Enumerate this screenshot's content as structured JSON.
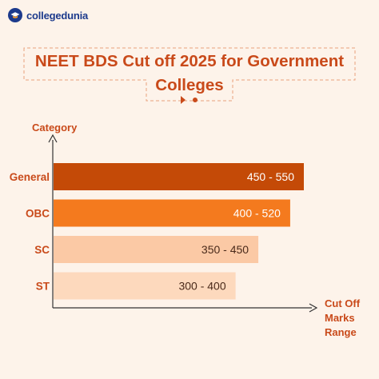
{
  "brand": {
    "name": "collegedunia",
    "logo_icon": "graduation-cap-icon",
    "color": "#1c3a8c"
  },
  "title": {
    "line1": "NEET BDS Cut off 2025 for Government",
    "line2": "Colleges"
  },
  "colors": {
    "background": "#fdf3ea",
    "title": "#c94a1a",
    "axis": "#333333"
  },
  "chart_data": {
    "type": "bar",
    "orientation": "horizontal",
    "ylabel": "Category",
    "xlabel_lines": [
      "Cut Off",
      "Marks",
      "Range"
    ],
    "categories": [
      "General",
      "OBC",
      "SC",
      "ST"
    ],
    "series": [
      {
        "values": [
          [
            450,
            550
          ],
          [
            400,
            520
          ],
          [
            350,
            450
          ],
          [
            300,
            400
          ]
        ],
        "labels": [
          "450 - 550",
          "400 - 520",
          "350 - 450",
          "300 - 400"
        ],
        "colors": [
          "#c44a07",
          "#f47a1e",
          "#fbc9a5",
          "#fdd9bd"
        ],
        "label_colors": [
          "#ffffff",
          "#ffffff",
          "#4a2a1a",
          "#4a2a1a"
        ]
      }
    ],
    "xlim": [
      0,
      600
    ],
    "grid": false,
    "legend": "none"
  }
}
